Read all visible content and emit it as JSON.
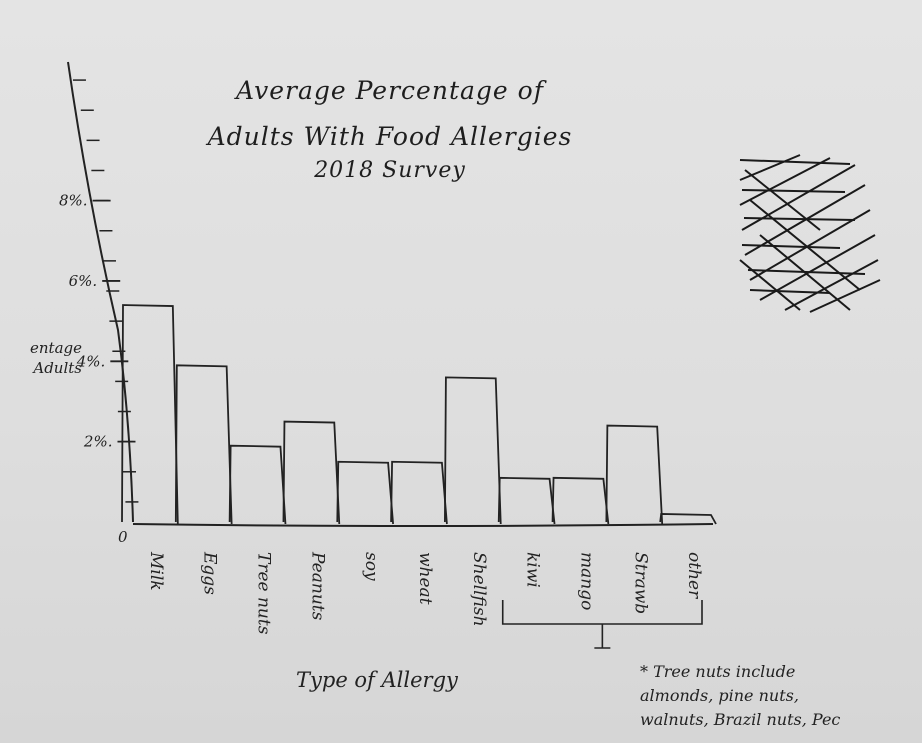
{
  "chart_data": {
    "type": "bar",
    "title_lines": [
      "Average Percentage of",
      "Adults With Food Allergies",
      "2018 Survey"
    ],
    "xlabel": "Type of Allergy",
    "ylabel": "entage Adults",
    "origin_label": "0",
    "yticks": [
      {
        "value": 2,
        "label": "2%."
      },
      {
        "value": 4,
        "label": "4%."
      },
      {
        "value": 6,
        "label": "6%."
      },
      {
        "value": 8,
        "label": "8%."
      }
    ],
    "ylim": [
      0,
      11.5
    ],
    "categories": [
      "Milk",
      "Eggs",
      "Tree nuts",
      "Peanuts",
      "soy",
      "wheat",
      "Shellfish",
      "kiwi",
      "mango",
      "Strawb",
      "other"
    ],
    "values": [
      5.4,
      3.9,
      1.9,
      2.5,
      1.5,
      1.5,
      3.6,
      1.1,
      1.1,
      2.4,
      0.2
    ],
    "grid": false,
    "legend": "none",
    "footnote": "* Tree nuts include\nalmonds, pine nuts,\nwalnuts, Brazil nuts, Pec"
  },
  "colors": {
    "ink": "#222222",
    "paper": "#e0e0e0"
  }
}
